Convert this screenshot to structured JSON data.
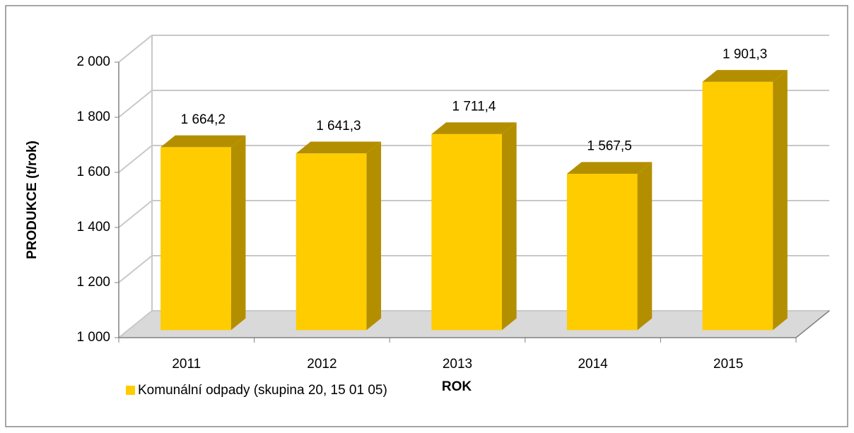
{
  "chart_data": {
    "type": "bar3d",
    "categories": [
      "2011",
      "2012",
      "2013",
      "2014",
      "2015"
    ],
    "series": [
      {
        "name": "Komunální odpady (skupina 20, 15 01 05)",
        "color": "#ffcc00",
        "side_color": "#b38f00",
        "values": [
          1664.2,
          1641.3,
          1711.4,
          1567.5,
          1901.3
        ],
        "value_labels": [
          "1 664,2",
          "1 641,3",
          "1 711,4",
          "1 567,5",
          "1 901,3"
        ]
      }
    ],
    "ylim": [
      1000,
      2000
    ],
    "yticks": [
      {
        "value": 1000,
        "label": "1 000"
      },
      {
        "value": 1200,
        "label": "1 200"
      },
      {
        "value": 1400,
        "label": "1 400"
      },
      {
        "value": 1600,
        "label": "1 600"
      },
      {
        "value": 1800,
        "label": "1 800"
      },
      {
        "value": 2000,
        "label": "2 000"
      }
    ],
    "xlabel": "ROK",
    "ylabel": "PRODUKCE (t/rok)",
    "grid": true,
    "legend": "bottom-left"
  }
}
